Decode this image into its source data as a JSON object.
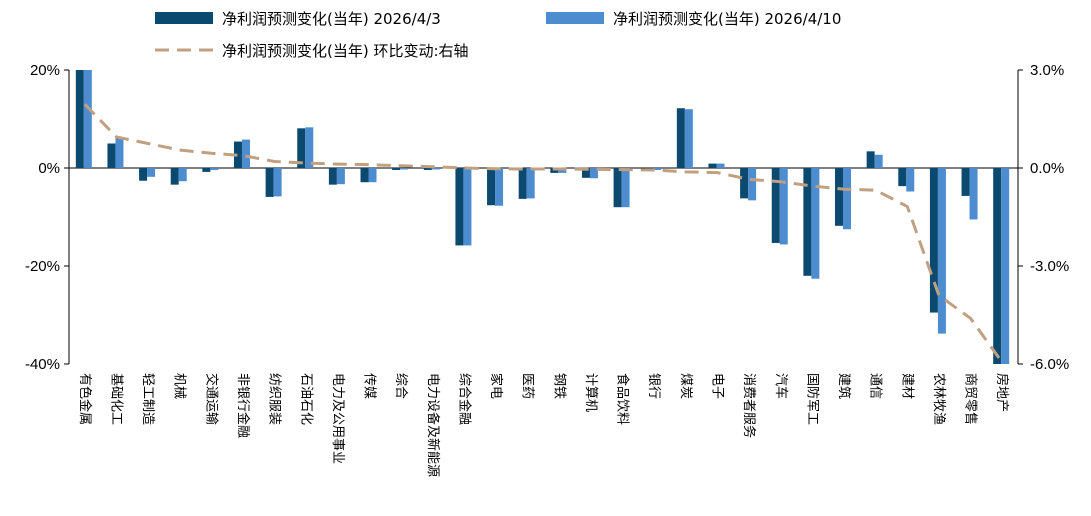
{
  "chart_data": {
    "type": "bar",
    "title": "",
    "xlabel": "",
    "ylabel": "",
    "ylim": [
      -40,
      20
    ],
    "y2lim": [
      -6,
      3
    ],
    "yticks": [
      "20%",
      "0%",
      "-20%",
      "-40%"
    ],
    "y2ticks": [
      "3.0%",
      "0.0%",
      "-3.0%",
      "-6.0%"
    ],
    "legend_placement": "top-center",
    "categories": [
      "有色金属",
      "基础化工",
      "轻工制造",
      "机械",
      "交通运输",
      "非银行金融",
      "纺织服装",
      "石油石化",
      "电力及公用事业",
      "传媒",
      "综合",
      "电力设备及新能源",
      "综合金融",
      "家电",
      "医药",
      "钢铁",
      "计算机",
      "食品饮料",
      "银行",
      "煤炭",
      "电子",
      "消费者服务",
      "汽车",
      "国防军工",
      "建筑",
      "通信",
      "建材",
      "农林牧渔",
      "商贸零售",
      "房地产"
    ],
    "series": [
      {
        "name": "净利润预测变化(当年) 2026/4/3",
        "axis": "left",
        "color": "#0b4a6e",
        "values": [
          20.0,
          5.0,
          -2.6,
          -3.4,
          -0.8,
          5.4,
          -5.9,
          8.1,
          -3.4,
          -2.9,
          -0.4,
          -0.4,
          -15.8,
          -7.6,
          -6.3,
          -1.0,
          -2.0,
          -8.0,
          -0.4,
          12.2,
          0.9,
          -6.2,
          -15.3,
          -22.0,
          -11.8,
          3.4,
          -3.7,
          -29.5,
          -5.7,
          -40.5
        ]
      },
      {
        "name": "净利润预测变化(当年) 2026/4/10",
        "axis": "left",
        "color": "#4d8ccf",
        "values": [
          20.0,
          6.2,
          -1.8,
          -2.7,
          -0.4,
          5.8,
          -5.8,
          8.3,
          -3.3,
          -2.9,
          -0.3,
          -0.3,
          -15.8,
          -7.7,
          -6.2,
          -1.0,
          -2.1,
          -8.0,
          -0.4,
          12.0,
          0.9,
          -6.6,
          -15.6,
          -22.6,
          -12.5,
          2.7,
          -4.8,
          -33.8,
          -10.5,
          -40.5
        ]
      },
      {
        "name": "净利润预测变化(当年) 环比变动:右轴",
        "axis": "right",
        "color": "#c0a080",
        "style": "dashed-line",
        "values": [
          1.95,
          0.95,
          0.75,
          0.55,
          0.45,
          0.38,
          0.2,
          0.15,
          0.12,
          0.1,
          0.07,
          0.04,
          0.0,
          -0.02,
          -0.03,
          -0.03,
          -0.04,
          -0.05,
          -0.06,
          -0.12,
          -0.14,
          -0.35,
          -0.42,
          -0.55,
          -0.65,
          -0.68,
          -1.18,
          -3.9,
          -4.6,
          -5.95
        ]
      }
    ],
    "grid": false
  }
}
